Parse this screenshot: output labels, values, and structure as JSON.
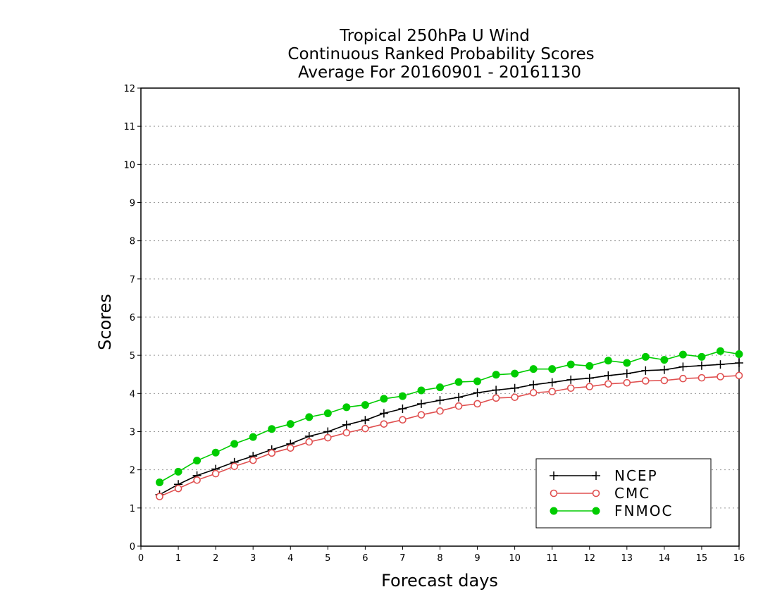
{
  "chart_data": {
    "type": "line",
    "title": [
      "Tropical 250hPa U Wind",
      "Continuous Ranked Probability Scores",
      "Average For 20160901 - 20161130"
    ],
    "xlabel": "Forecast days",
    "ylabel": "Scores",
    "xlim": [
      0,
      16
    ],
    "ylim": [
      0,
      12
    ],
    "x_ticks": [
      0,
      1,
      2,
      3,
      4,
      5,
      6,
      7,
      8,
      9,
      10,
      11,
      12,
      13,
      14,
      15,
      16
    ],
    "y_ticks": [
      0,
      1,
      2,
      3,
      4,
      5,
      6,
      7,
      8,
      9,
      10,
      11,
      12
    ],
    "grid": "horizontal dotted",
    "legend_position": "bottom-right",
    "x": [
      0.5,
      1,
      1.5,
      2,
      2.5,
      3,
      3.5,
      4,
      4.5,
      5,
      5.5,
      6,
      6.5,
      7,
      7.5,
      8,
      8.5,
      9,
      9.5,
      10,
      10.5,
      11,
      11.5,
      12,
      12.5,
      13,
      13.5,
      14,
      14.5,
      15,
      15.5,
      16
    ],
    "series": [
      {
        "name": "NCEP",
        "color": "#000000",
        "marker": "plus",
        "values": [
          1.35,
          1.62,
          1.85,
          2.02,
          2.2,
          2.36,
          2.53,
          2.68,
          2.88,
          3.0,
          3.18,
          3.3,
          3.48,
          3.6,
          3.73,
          3.82,
          3.9,
          4.02,
          4.09,
          4.14,
          4.23,
          4.29,
          4.36,
          4.4,
          4.47,
          4.52,
          4.6,
          4.62,
          4.7,
          4.73,
          4.76,
          4.8
        ]
      },
      {
        "name": "CMC",
        "color": "#e05050",
        "marker": "open-circle",
        "values": [
          1.3,
          1.51,
          1.73,
          1.9,
          2.09,
          2.25,
          2.44,
          2.57,
          2.73,
          2.84,
          2.97,
          3.08,
          3.2,
          3.31,
          3.44,
          3.54,
          3.67,
          3.73,
          3.88,
          3.9,
          4.02,
          4.05,
          4.14,
          4.18,
          4.25,
          4.28,
          4.33,
          4.34,
          4.39,
          4.41,
          4.44,
          4.47
        ]
      },
      {
        "name": "FNMOC",
        "color": "#00cc00",
        "marker": "filled-circle",
        "values": [
          1.67,
          1.95,
          2.24,
          2.45,
          2.68,
          2.86,
          3.07,
          3.2,
          3.38,
          3.48,
          3.64,
          3.7,
          3.86,
          3.93,
          4.08,
          4.16,
          4.3,
          4.32,
          4.49,
          4.52,
          4.64,
          4.64,
          4.76,
          4.72,
          4.86,
          4.8,
          4.96,
          4.88,
          5.02,
          4.96,
          5.11,
          5.03
        ]
      }
    ]
  }
}
